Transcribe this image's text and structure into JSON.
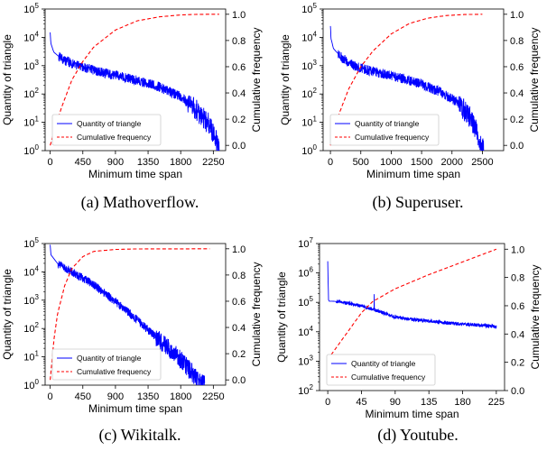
{
  "colors": {
    "quantity": "#0000ff",
    "cumulative": "#ff0000"
  },
  "chart_data": [
    {
      "type": "line",
      "caption": "(a) Mathoverflow.",
      "xlabel": "Minimum time span",
      "ylabel_left": "Quantity of triangle",
      "ylabel_right": "Cumulative frequency",
      "x_ticks": [
        0,
        450,
        900,
        1350,
        1800,
        2250
      ],
      "xlim": [
        -70,
        2420
      ],
      "ylim_left_log": [
        1,
        100000
      ],
      "ylim_right": [
        -0.04,
        1.04
      ],
      "legend": [
        "Quantity of triangle",
        "Cumulative frequency"
      ],
      "series": [
        {
          "name": "Quantity of triangle",
          "axis": "left",
          "scale": "log",
          "x": [
            0,
            10,
            50,
            150,
            300,
            450,
            600,
            900,
            1200,
            1500,
            1800,
            2000,
            2200,
            2300,
            2330
          ],
          "y": [
            15000,
            6000,
            3000,
            1800,
            1200,
            900,
            700,
            450,
            300,
            180,
            80,
            30,
            8,
            2,
            1
          ],
          "noise": 0.35
        },
        {
          "name": "Cumulative frequency",
          "axis": "right",
          "scale": "linear",
          "x": [
            0,
            50,
            150,
            300,
            450,
            600,
            900,
            1200,
            1500,
            1800,
            2000,
            2200,
            2330
          ],
          "y": [
            0.0,
            0.1,
            0.28,
            0.5,
            0.64,
            0.75,
            0.88,
            0.95,
            0.98,
            0.995,
            0.999,
            1.0,
            1.0
          ]
        }
      ]
    },
    {
      "type": "line",
      "caption": "(b) Superuser.",
      "xlabel": "Minimum time span",
      "ylabel_left": "Quantity of triangle",
      "ylabel_right": "Cumulative frequency",
      "x_ticks": [
        0,
        500,
        1000,
        1500,
        2000,
        2500
      ],
      "xlim": [
        -120,
        2850
      ],
      "ylim_left_log": [
        1,
        100000
      ],
      "ylim_right": [
        -0.04,
        1.04
      ],
      "legend": [
        "Quantity of triangle",
        "Cumulative frequency"
      ],
      "series": [
        {
          "name": "Quantity of triangle",
          "axis": "left",
          "scale": "log",
          "x": [
            0,
            10,
            50,
            200,
            400,
            600,
            900,
            1200,
            1500,
            1800,
            2100,
            2300,
            2450,
            2520
          ],
          "y": [
            25000,
            9000,
            4000,
            1800,
            1000,
            700,
            500,
            350,
            220,
            120,
            50,
            15,
            3,
            1
          ],
          "noise": 0.35
        },
        {
          "name": "Cumulative frequency",
          "axis": "right",
          "scale": "linear",
          "x": [
            0,
            50,
            150,
            300,
            500,
            700,
            1000,
            1300,
            1600,
            1900,
            2200,
            2500
          ],
          "y": [
            0.0,
            0.1,
            0.25,
            0.43,
            0.6,
            0.72,
            0.85,
            0.93,
            0.97,
            0.99,
            0.998,
            1.0
          ]
        }
      ]
    },
    {
      "type": "line",
      "caption": "(c) Wikitalk.",
      "xlabel": "Minimum time span",
      "ylabel_left": "Quantity of triangle",
      "ylabel_right": "Cumulative frequency",
      "x_ticks": [
        0,
        450,
        900,
        1350,
        1800,
        2250
      ],
      "xlim": [
        -70,
        2420
      ],
      "ylim_left_log": [
        1,
        100000
      ],
      "ylim_right": [
        -0.04,
        1.04
      ],
      "legend": [
        "Quantity of triangle",
        "Cumulative frequency"
      ],
      "series": [
        {
          "name": "Quantity of triangle",
          "axis": "left",
          "scale": "log",
          "x": [
            0,
            10,
            100,
            300,
            450,
            600,
            900,
            1200,
            1500,
            1800,
            2000,
            2130
          ],
          "y": [
            90000,
            40000,
            20000,
            10000,
            6000,
            3500,
            900,
            200,
            40,
            8,
            2,
            1
          ],
          "noise": 0.3
        },
        {
          "name": "Cumulative frequency",
          "axis": "right",
          "scale": "linear",
          "x": [
            0,
            50,
            100,
            200,
            300,
            450,
            600,
            900,
            1200,
            2200
          ],
          "y": [
            0.0,
            0.3,
            0.5,
            0.72,
            0.85,
            0.94,
            0.98,
            0.995,
            0.999,
            1.0
          ]
        }
      ]
    },
    {
      "type": "line",
      "caption": "(d) Youtube.",
      "xlabel": "Minimum time span",
      "ylabel_left": "Quantity of triangle",
      "ylabel_right": "Cumulative frequency",
      "x_ticks": [
        0,
        45,
        90,
        135,
        180,
        225
      ],
      "xlim": [
        -11,
        236
      ],
      "ylim_left_log": [
        100,
        10000000
      ],
      "ylim_right": [
        0.0,
        1.04
      ],
      "legend": [
        "Quantity of triangle",
        "Cumulative frequency"
      ],
      "series": [
        {
          "name": "Quantity of triangle",
          "axis": "left",
          "scale": "log",
          "x": [
            0,
            1,
            2,
            5,
            15,
            30,
            50,
            70,
            90,
            120,
            150,
            180,
            200,
            225
          ],
          "y": [
            2500000,
            120000,
            110000,
            110000,
            105000,
            90000,
            70000,
            48000,
            32000,
            25000,
            21000,
            18000,
            17000,
            15000
          ],
          "spike": {
            "x": 62,
            "y": 190000
          },
          "noise": 0.12
        },
        {
          "name": "Cumulative frequency",
          "axis": "right",
          "scale": "linear",
          "x": [
            0,
            15,
            30,
            45,
            60,
            90,
            135,
            180,
            225
          ],
          "y": [
            0.22,
            0.33,
            0.44,
            0.55,
            0.63,
            0.72,
            0.82,
            0.91,
            1.0
          ]
        }
      ]
    }
  ]
}
